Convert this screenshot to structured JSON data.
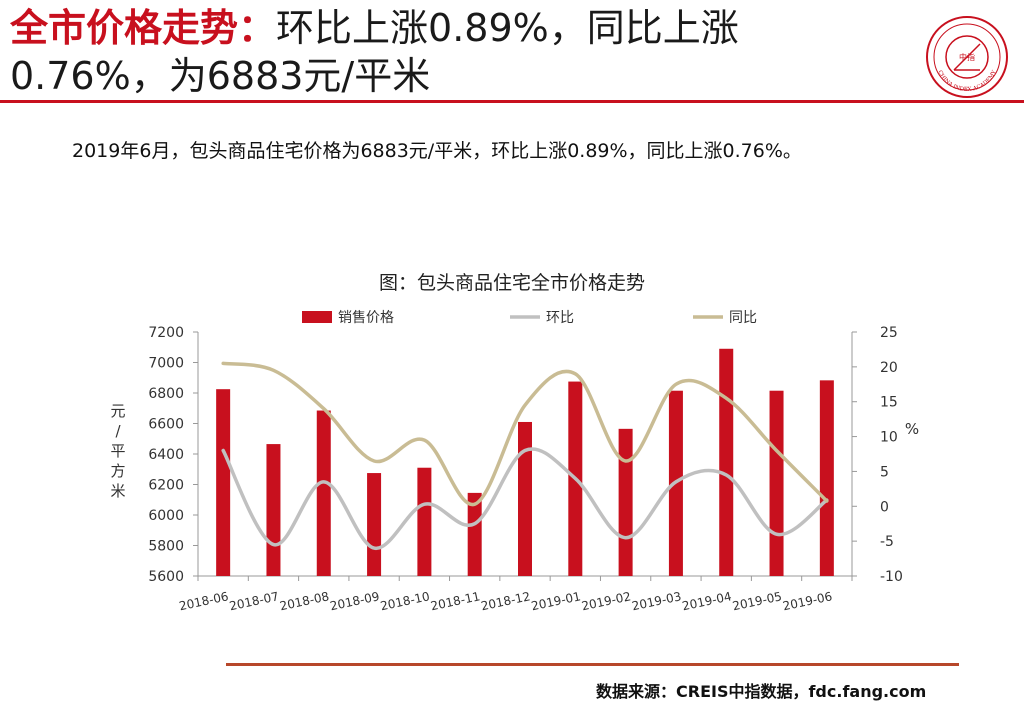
{
  "header": {
    "title_accent": "全市价格走势：",
    "title_rest_line1": "环比上涨0.89%，同比上涨",
    "title_line2": "0.76%，为6883元/平米"
  },
  "logo": {
    "name": "china-index-academy-seal",
    "inner_text": "中指",
    "ring_text": "CHINA INDEX ACADEMY",
    "color": "#c8101e"
  },
  "summary": "2019年6月，包头商品住宅价格为6883元/平米，环比上涨0.89%，同比上涨0.76%。",
  "chart_data": {
    "type": "bar",
    "title": "图：包头商品住宅全市价格走势",
    "categories": [
      "2018-06",
      "2018-07",
      "2018-08",
      "2018-09",
      "2018-10",
      "2018-11",
      "2018-12",
      "2019-01",
      "2019-02",
      "2019-03",
      "2019-04",
      "2019-05",
      "2019-06"
    ],
    "series": [
      {
        "name": "销售价格",
        "type": "bar",
        "axis": "left",
        "color": "#c8101e",
        "values": [
          6825,
          6465,
          6685,
          6275,
          6310,
          6145,
          6610,
          6875,
          6565,
          6815,
          7090,
          6815,
          6883
        ]
      },
      {
        "name": "环比",
        "type": "line",
        "axis": "right",
        "color": "#c0c0c0",
        "values": [
          8,
          -5.5,
          3.5,
          -6,
          0.3,
          -2.5,
          8,
          4,
          -4.5,
          3.5,
          4.5,
          -4,
          0.89
        ]
      },
      {
        "name": "同比",
        "type": "line",
        "axis": "right",
        "color": "#c9bc94",
        "values": [
          20.5,
          19.5,
          14,
          6.5,
          9.5,
          0.3,
          14.5,
          19,
          6.5,
          17.5,
          15.5,
          8,
          0.76
        ]
      }
    ],
    "y_left": {
      "label": "元/平方米",
      "min": 5600,
      "max": 7200,
      "ticks": [
        5600,
        5800,
        6000,
        6200,
        6400,
        6600,
        6800,
        7000,
        7200
      ]
    },
    "y_right": {
      "label": "%",
      "min": -10,
      "max": 25,
      "ticks": [
        -10,
        -5,
        0,
        5,
        10,
        15,
        20,
        25
      ]
    },
    "legend_position": "top",
    "grid": false
  },
  "footer": {
    "source": "数据来源：CREIS中指数据，fdc.fang.com",
    "rule_color": "#b7472a"
  }
}
